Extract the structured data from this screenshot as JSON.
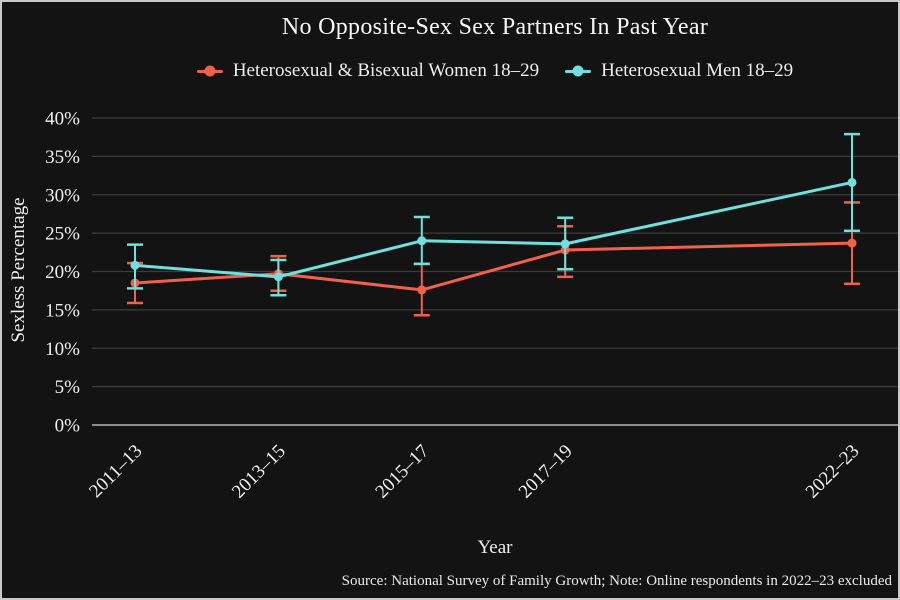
{
  "page": {
    "background": "#131313",
    "frame_border_color": "#c9c9c9",
    "text_color": "#f0f0f0"
  },
  "chart_data": {
    "type": "line",
    "title": "No Opposite-Sex Sex Partners In Past Year",
    "xlabel": "Year",
    "ylabel": "Sexless Percentage",
    "source_note": "Source: National Survey of Family Growth; Note: Online respondents in 2022–23 excluded",
    "legend_position": "top",
    "grid": true,
    "gridline_color": "#3c3c3c",
    "baseline_color": "#8d8d8d",
    "categories": [
      "2011–13",
      "2013–15",
      "2015–17",
      "2017–19",
      "2022–23"
    ],
    "x_slots": [
      0,
      1,
      2,
      3,
      5
    ],
    "ylim": [
      0,
      40
    ],
    "y_tick_values": [
      0,
      5,
      10,
      15,
      20,
      25,
      30,
      35,
      40
    ],
    "y_tick_labels": [
      "0%",
      "5%",
      "10%",
      "15%",
      "20%",
      "25%",
      "30%",
      "35%",
      "40%"
    ],
    "series": [
      {
        "name": "Heterosexual & Bisexual Women 18–29",
        "color": "#F0614A",
        "values": [
          18.5,
          19.7,
          17.6,
          22.8,
          23.7
        ],
        "ci_low": [
          15.9,
          17.5,
          14.3,
          19.3,
          18.4
        ],
        "ci_high": [
          21.1,
          22.0,
          21.0,
          25.9,
          29.0
        ]
      },
      {
        "name": "Heterosexual Men 18–29",
        "color": "#6FE0DD",
        "values": [
          20.8,
          19.3,
          24.0,
          23.6,
          31.6
        ],
        "ci_low": [
          17.8,
          16.9,
          21.0,
          20.3,
          25.3
        ],
        "ci_high": [
          23.5,
          21.5,
          27.1,
          27.0,
          37.9
        ]
      }
    ]
  }
}
